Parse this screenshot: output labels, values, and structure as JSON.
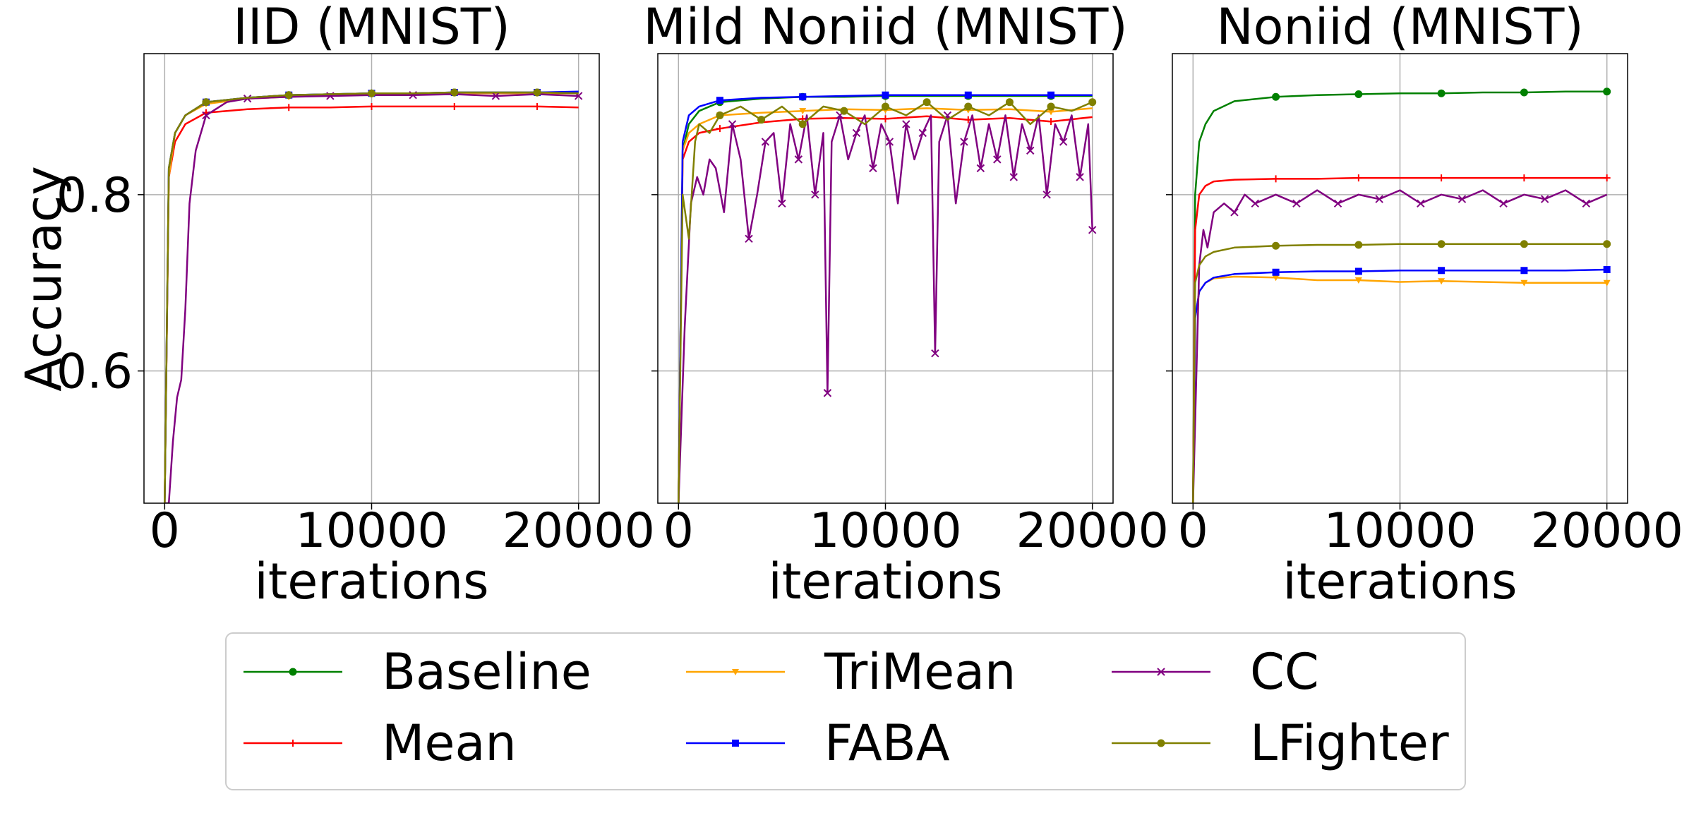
{
  "figure": {
    "ylabel": "Accuracy",
    "legend_position": "bottom-center"
  },
  "legend": {
    "items": [
      {
        "label": "Baseline",
        "color": "#008000",
        "marker": "circle"
      },
      {
        "label": "Mean",
        "color": "#ff0000",
        "marker": "plus"
      },
      {
        "label": "TriMean",
        "color": "#ffa500",
        "marker": "triangle-down"
      },
      {
        "label": "FABA",
        "color": "#0000ff",
        "marker": "square"
      },
      {
        "label": "CC",
        "color": "#800080",
        "marker": "x"
      },
      {
        "label": "LFighter",
        "color": "#808000",
        "marker": "circle"
      }
    ]
  },
  "chart_data": [
    {
      "type": "line",
      "title": "IID (MNIST)",
      "xlabel": "iterations",
      "ylabel": "Accuracy",
      "xlim": [
        -1000,
        21000
      ],
      "ylim": [
        0.45,
        0.96
      ],
      "x_ticks": [
        0,
        10000,
        20000
      ],
      "x_tick_labels": [
        "0",
        "10000",
        "20000"
      ],
      "y_ticks": [
        0.6,
        0.8
      ],
      "y_tick_labels": [
        "0.6",
        "0.8"
      ],
      "grid": true,
      "series": [
        {
          "name": "Baseline",
          "x": [
            0,
            200,
            500,
            1000,
            2000,
            4000,
            6000,
            8000,
            10000,
            12000,
            14000,
            16000,
            18000,
            20000
          ],
          "values": [
            0.45,
            0.83,
            0.87,
            0.89,
            0.905,
            0.91,
            0.913,
            0.914,
            0.915,
            0.915,
            0.916,
            0.916,
            0.916,
            0.916
          ]
        },
        {
          "name": "Mean",
          "x": [
            0,
            200,
            500,
            1000,
            2000,
            4000,
            6000,
            8000,
            10000,
            12000,
            14000,
            16000,
            18000,
            20000
          ],
          "values": [
            0.45,
            0.82,
            0.86,
            0.88,
            0.893,
            0.897,
            0.899,
            0.899,
            0.9,
            0.9,
            0.9,
            0.9,
            0.9,
            0.899
          ]
        },
        {
          "name": "TriMean",
          "x": [
            0,
            200,
            500,
            1000,
            2000,
            4000,
            6000,
            8000,
            10000,
            12000,
            14000,
            16000,
            18000,
            20000
          ],
          "values": [
            0.45,
            0.82,
            0.87,
            0.89,
            0.903,
            0.909,
            0.911,
            0.913,
            0.914,
            0.914,
            0.915,
            0.915,
            0.915,
            0.915
          ]
        },
        {
          "name": "FABA",
          "x": [
            0,
            200,
            500,
            1000,
            2000,
            4000,
            6000,
            8000,
            10000,
            12000,
            14000,
            16000,
            18000,
            20000
          ],
          "values": [
            0.45,
            0.83,
            0.87,
            0.89,
            0.905,
            0.91,
            0.913,
            0.914,
            0.915,
            0.915,
            0.916,
            0.916,
            0.916,
            0.917
          ]
        },
        {
          "name": "CC",
          "x": [
            0,
            200,
            400,
            600,
            800,
            1000,
            1200,
            1500,
            2000,
            3000,
            4000,
            6000,
            8000,
            10000,
            12000,
            14000,
            16000,
            18000,
            20000
          ],
          "values": [
            0.45,
            0.45,
            0.52,
            0.57,
            0.59,
            0.67,
            0.79,
            0.85,
            0.89,
            0.905,
            0.909,
            0.911,
            0.912,
            0.913,
            0.913,
            0.914,
            0.912,
            0.914,
            0.912
          ]
        },
        {
          "name": "LFighter",
          "x": [
            0,
            200,
            500,
            1000,
            2000,
            4000,
            6000,
            8000,
            10000,
            12000,
            14000,
            16000,
            18000,
            20000
          ],
          "values": [
            0.45,
            0.83,
            0.87,
            0.89,
            0.905,
            0.91,
            0.913,
            0.914,
            0.915,
            0.915,
            0.916,
            0.916,
            0.916,
            0.915
          ]
        }
      ]
    },
    {
      "type": "line",
      "title": "Mild Noniid (MNIST)",
      "xlabel": "iterations",
      "ylabel": "",
      "xlim": [
        -1000,
        21000
      ],
      "ylim": [
        0.45,
        0.96
      ],
      "x_ticks": [
        0,
        10000,
        20000
      ],
      "x_tick_labels": [
        "0",
        "10000",
        "20000"
      ],
      "y_ticks": [
        0.6,
        0.8
      ],
      "y_tick_labels": [],
      "grid": true,
      "series": [
        {
          "name": "Baseline",
          "x": [
            0,
            200,
            500,
            1000,
            2000,
            4000,
            6000,
            8000,
            10000,
            12000,
            14000,
            16000,
            18000,
            20000
          ],
          "values": [
            0.45,
            0.85,
            0.88,
            0.895,
            0.905,
            0.909,
            0.911,
            0.911,
            0.912,
            0.912,
            0.912,
            0.912,
            0.912,
            0.912
          ]
        },
        {
          "name": "Mean",
          "x": [
            0,
            200,
            500,
            1000,
            2000,
            4000,
            6000,
            8000,
            10000,
            12000,
            14000,
            16000,
            18000,
            20000
          ],
          "values": [
            0.45,
            0.84,
            0.86,
            0.87,
            0.875,
            0.882,
            0.886,
            0.887,
            0.886,
            0.889,
            0.885,
            0.887,
            0.883,
            0.888
          ]
        },
        {
          "name": "TriMean",
          "x": [
            0,
            200,
            500,
            1000,
            2000,
            4000,
            6000,
            8000,
            10000,
            12000,
            14000,
            16000,
            18000,
            20000
          ],
          "values": [
            0.45,
            0.85,
            0.87,
            0.88,
            0.89,
            0.893,
            0.895,
            0.897,
            0.896,
            0.898,
            0.896,
            0.897,
            0.894,
            0.898
          ]
        },
        {
          "name": "FABA",
          "x": [
            0,
            200,
            500,
            1000,
            2000,
            4000,
            6000,
            8000,
            10000,
            12000,
            14000,
            16000,
            18000,
            20000
          ],
          "values": [
            0.45,
            0.86,
            0.89,
            0.9,
            0.907,
            0.91,
            0.911,
            0.912,
            0.913,
            0.913,
            0.913,
            0.913,
            0.913,
            0.913
          ]
        },
        {
          "name": "CC",
          "x": [
            0,
            300,
            600,
            900,
            1200,
            1500,
            1800,
            2200,
            2600,
            3000,
            3400,
            3800,
            4200,
            4600,
            5000,
            5400,
            5800,
            6200,
            6600,
            7000,
            7200,
            7400,
            7800,
            8200,
            8600,
            9000,
            9400,
            9800,
            10200,
            10600,
            11000,
            11400,
            11800,
            12200,
            12400,
            12600,
            13000,
            13400,
            13800,
            14200,
            14600,
            15000,
            15400,
            15800,
            16200,
            16600,
            17000,
            17400,
            17800,
            18200,
            18600,
            19000,
            19400,
            19800,
            20000
          ],
          "values": [
            0.45,
            0.65,
            0.79,
            0.82,
            0.8,
            0.84,
            0.83,
            0.78,
            0.88,
            0.84,
            0.75,
            0.8,
            0.86,
            0.87,
            0.79,
            0.88,
            0.84,
            0.89,
            0.8,
            0.87,
            0.575,
            0.86,
            0.89,
            0.84,
            0.87,
            0.89,
            0.83,
            0.88,
            0.86,
            0.79,
            0.88,
            0.84,
            0.87,
            0.89,
            0.62,
            0.86,
            0.89,
            0.79,
            0.86,
            0.89,
            0.83,
            0.88,
            0.84,
            0.89,
            0.82,
            0.88,
            0.85,
            0.89,
            0.8,
            0.88,
            0.86,
            0.89,
            0.82,
            0.88,
            0.76
          ]
        },
        {
          "name": "LFighter",
          "x": [
            0,
            200,
            500,
            800,
            1000,
            1500,
            2000,
            3000,
            4000,
            5000,
            6000,
            7000,
            8000,
            9000,
            10000,
            11000,
            12000,
            13000,
            14000,
            15000,
            16000,
            17000,
            18000,
            19000,
            20000
          ],
          "values": [
            0.45,
            0.8,
            0.75,
            0.86,
            0.88,
            0.87,
            0.89,
            0.9,
            0.885,
            0.9,
            0.88,
            0.9,
            0.895,
            0.88,
            0.9,
            0.89,
            0.905,
            0.885,
            0.9,
            0.89,
            0.905,
            0.88,
            0.9,
            0.895,
            0.905
          ]
        }
      ]
    },
    {
      "type": "line",
      "title": "Noniid (MNIST)",
      "xlabel": "iterations",
      "ylabel": "",
      "xlim": [
        -1000,
        21000
      ],
      "ylim": [
        0.45,
        0.96
      ],
      "x_ticks": [
        0,
        10000,
        20000
      ],
      "x_tick_labels": [
        "0",
        "10000",
        "20000"
      ],
      "y_ticks": [
        0.6,
        0.8
      ],
      "y_tick_labels": [],
      "grid": true,
      "series": [
        {
          "name": "Baseline",
          "x": [
            0,
            100,
            300,
            600,
            1000,
            2000,
            4000,
            6000,
            8000,
            10000,
            12000,
            14000,
            16000,
            18000,
            20000
          ],
          "values": [
            0.45,
            0.8,
            0.86,
            0.88,
            0.895,
            0.906,
            0.911,
            0.913,
            0.914,
            0.915,
            0.915,
            0.916,
            0.916,
            0.917,
            0.917
          ]
        },
        {
          "name": "Mean",
          "x": [
            0,
            100,
            300,
            600,
            1000,
            2000,
            4000,
            6000,
            8000,
            10000,
            12000,
            14000,
            16000,
            18000,
            20000
          ],
          "values": [
            0.45,
            0.76,
            0.8,
            0.81,
            0.815,
            0.817,
            0.818,
            0.818,
            0.819,
            0.819,
            0.819,
            0.819,
            0.819,
            0.819,
            0.819
          ]
        },
        {
          "name": "TriMean",
          "x": [
            0,
            100,
            300,
            600,
            1000,
            2000,
            4000,
            6000,
            8000,
            10000,
            12000,
            14000,
            16000,
            18000,
            20000
          ],
          "values": [
            0.45,
            0.66,
            0.69,
            0.7,
            0.705,
            0.707,
            0.706,
            0.703,
            0.703,
            0.701,
            0.702,
            0.701,
            0.7,
            0.7,
            0.7
          ]
        },
        {
          "name": "FABA",
          "x": [
            0,
            100,
            300,
            600,
            1000,
            2000,
            4000,
            6000,
            8000,
            10000,
            12000,
            14000,
            16000,
            18000,
            20000
          ],
          "values": [
            0.45,
            0.66,
            0.69,
            0.7,
            0.706,
            0.71,
            0.712,
            0.713,
            0.713,
            0.714,
            0.714,
            0.714,
            0.714,
            0.714,
            0.715
          ]
        },
        {
          "name": "CC",
          "x": [
            0,
            300,
            500,
            700,
            1000,
            1500,
            2000,
            2500,
            3000,
            4000,
            5000,
            6000,
            7000,
            8000,
            9000,
            10000,
            11000,
            12000,
            13000,
            14000,
            15000,
            16000,
            17000,
            18000,
            19000,
            20000
          ],
          "values": [
            0.45,
            0.72,
            0.76,
            0.74,
            0.78,
            0.79,
            0.78,
            0.8,
            0.79,
            0.8,
            0.79,
            0.805,
            0.79,
            0.8,
            0.795,
            0.805,
            0.79,
            0.8,
            0.795,
            0.805,
            0.79,
            0.8,
            0.795,
            0.805,
            0.79,
            0.8
          ]
        },
        {
          "name": "LFighter",
          "x": [
            0,
            100,
            300,
            600,
            1000,
            2000,
            4000,
            6000,
            8000,
            10000,
            12000,
            14000,
            16000,
            18000,
            20000
          ],
          "values": [
            0.45,
            0.7,
            0.72,
            0.73,
            0.735,
            0.74,
            0.742,
            0.743,
            0.743,
            0.744,
            0.744,
            0.744,
            0.744,
            0.744,
            0.744
          ]
        }
      ]
    }
  ]
}
